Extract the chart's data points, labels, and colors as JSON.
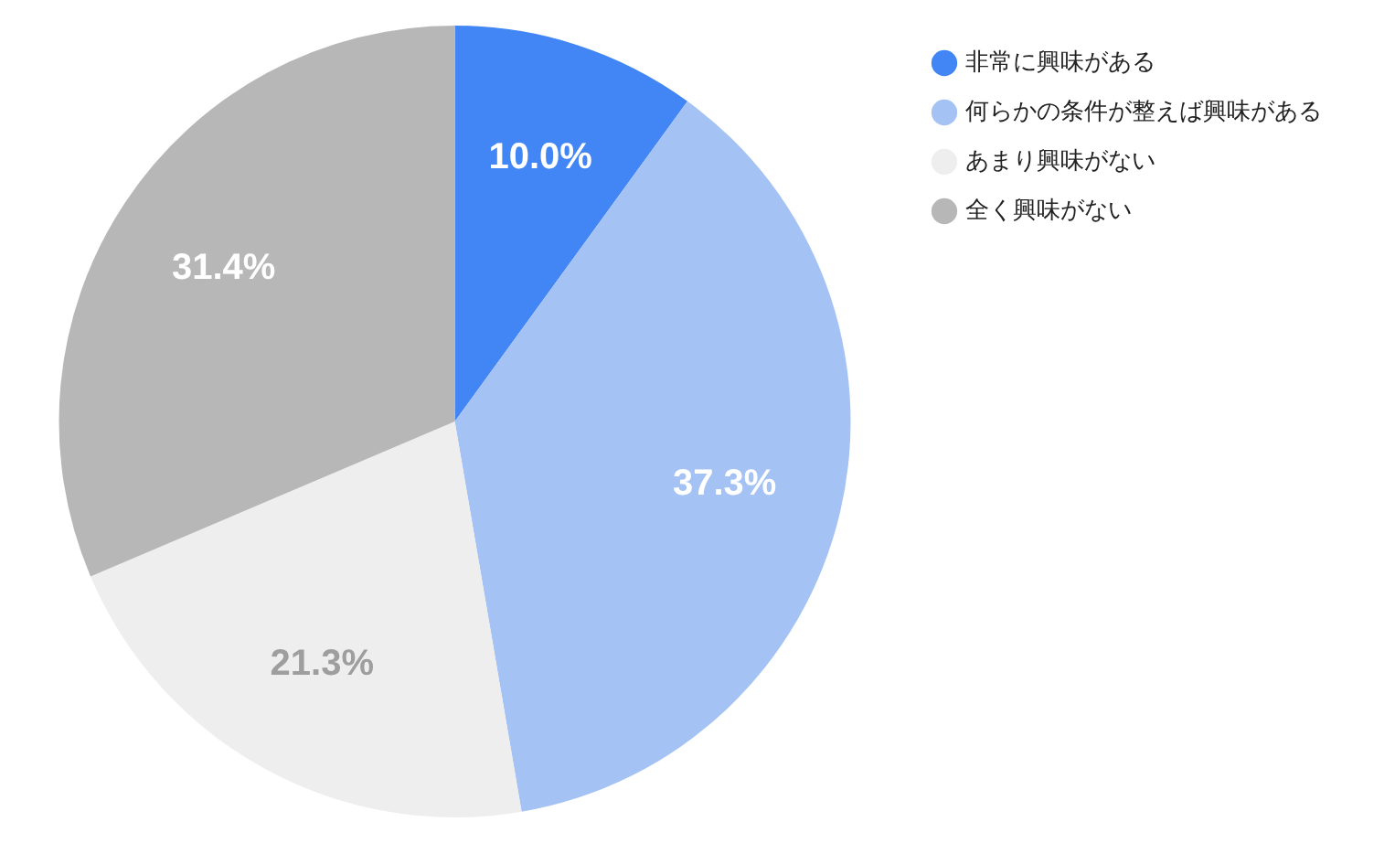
{
  "chart_data": {
    "type": "pie",
    "categories": [
      "非常に興味がある",
      "何らかの条件が整えば興味がある",
      "あまり興味がない",
      "全く興味がない"
    ],
    "values": [
      10.0,
      37.3,
      21.3,
      31.4
    ],
    "colors": [
      "#4285f4",
      "#a4c2f4",
      "#eeeeee",
      "#b7b7b7"
    ],
    "value_labels": [
      "10.0%",
      "37.3%",
      "21.3%",
      "31.4%"
    ],
    "legend": "top right"
  }
}
